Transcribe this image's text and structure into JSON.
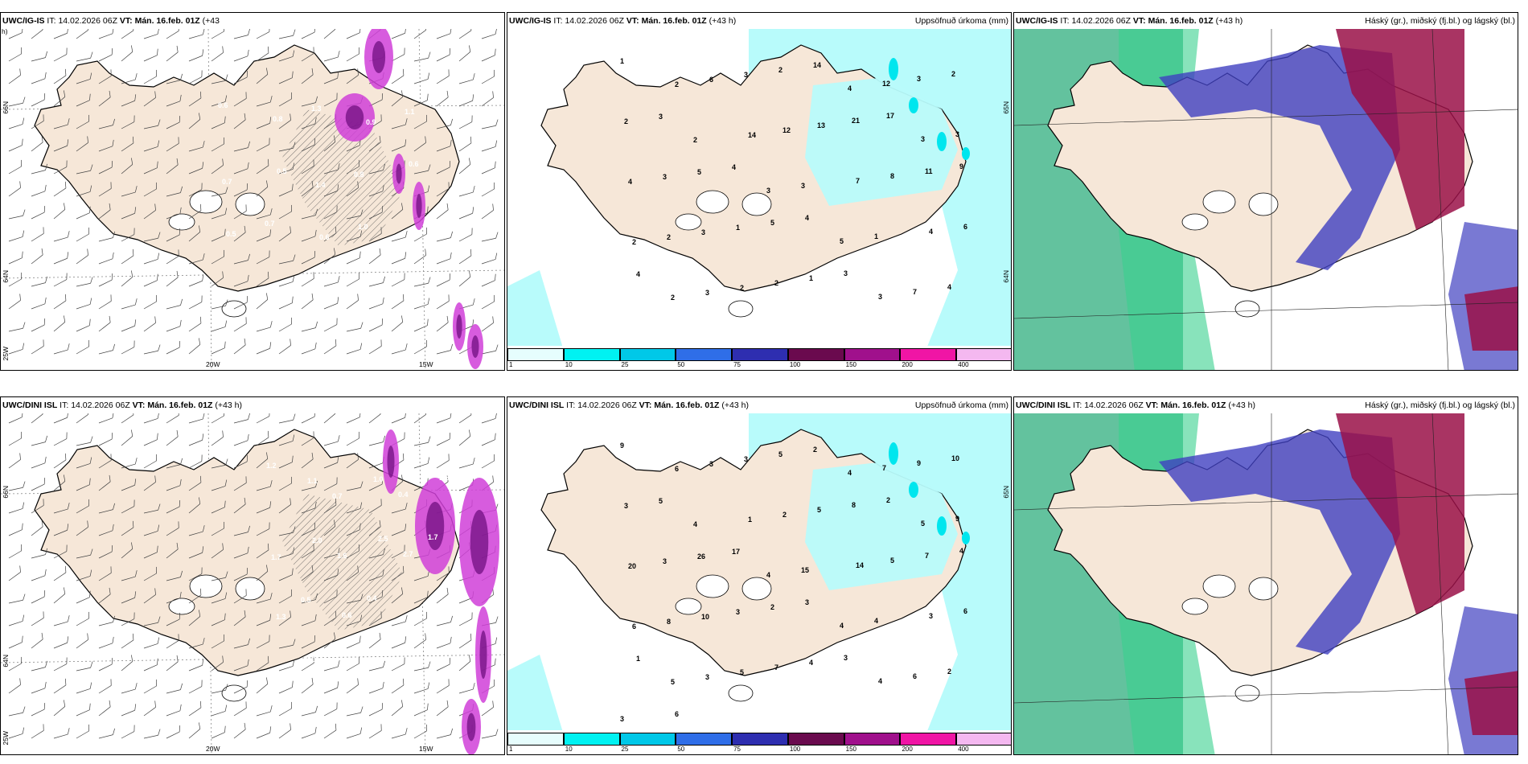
{
  "panels": [
    {
      "id": "r1c1",
      "kind": "wind",
      "model": "UWC/IG-IS",
      "it_label": "IT:",
      "it": "14.02.2026 06Z",
      "vt_label": "VT:",
      "vt": "Mán. 16.feb. 01Z",
      "lead": "(+43",
      "lead2": "h)",
      "field": "",
      "lon_labels": [
        "20W",
        "15W"
      ],
      "lat_labels": [
        "66N",
        "64N",
        "25W"
      ],
      "values": [
        "0.6",
        "0.8",
        "1.3",
        "0.9",
        "1.1",
        "0.7",
        "0.5",
        "1.4",
        "0.8",
        "0.6",
        "0.5",
        "0.7",
        "0.6",
        "1.0"
      ]
    },
    {
      "id": "r1c2",
      "kind": "precip",
      "model": "UWC/IG-IS",
      "it_label": "IT:",
      "it": "14.02.2026 06Z",
      "vt_label": "VT:",
      "vt": "Mán. 16.feb. 01Z",
      "lead": "(+43 h)",
      "lead2": "",
      "field": "Uppsöfnuð úrkoma (mm)",
      "lat_labels": [
        "65N",
        "64N"
      ],
      "values": [
        "1",
        "2",
        "6",
        "3",
        "2",
        "14",
        "4",
        "12",
        "3",
        "2",
        "2",
        "3",
        "2",
        "14",
        "12",
        "13",
        "21",
        "17",
        "3",
        "3",
        "4",
        "3",
        "5",
        "4",
        "3",
        "3",
        "7",
        "8",
        "11",
        "9",
        "2",
        "2",
        "3",
        "1",
        "5",
        "4",
        "5",
        "1",
        "4",
        "6",
        "4",
        "2",
        "3",
        "2",
        "2",
        "1",
        "3",
        "3",
        "7",
        "4"
      ]
    },
    {
      "id": "r1c3",
      "kind": "cloud",
      "model": "UWC/IG-IS",
      "it_label": "IT:",
      "it": "14.02.2026 06Z",
      "vt_label": "VT:",
      "vt": "Mán. 16.feb. 01Z",
      "lead": "(+43 h)",
      "lead2": "",
      "field": "Háský (gr.), miðský (fj.bl.) og lágský (bl.)"
    },
    {
      "id": "r2c1",
      "kind": "wind",
      "model": "UWC/DINI ISL",
      "it_label": "IT:",
      "it": "14.02.2026 06Z",
      "vt_label": "VT:",
      "vt": "Mán. 16.feb. 01Z",
      "lead": "(+43 h)",
      "lead2": "",
      "field": "",
      "lon_labels": [
        "20W",
        "15W"
      ],
      "lat_labels": [
        "66N",
        "64N",
        "25W"
      ],
      "values": [
        "1.2",
        "1.1",
        "0.7",
        "1.0",
        "0.4",
        "1.8",
        "1.7",
        "2.0",
        "1.6",
        "2.5",
        "2.7",
        "1.7",
        "1.3",
        "0.5",
        "0.6",
        "0.4",
        "-3.4",
        "0.8",
        "1.0",
        "2.0"
      ]
    },
    {
      "id": "r2c2",
      "kind": "precip",
      "model": "UWC/DINI ISL",
      "it_label": "IT:",
      "it": "14.02.2026 06Z",
      "vt_label": "VT:",
      "vt": "Mán. 16.feb. 01Z",
      "lead": "(+43 h)",
      "lead2": "",
      "field": "Uppsöfnuð úrkoma (mm)",
      "lat_labels": [
        "65N"
      ],
      "values": [
        "9",
        "6",
        "3",
        "3",
        "5",
        "2",
        "4",
        "7",
        "9",
        "10",
        "3",
        "5",
        "4",
        "1",
        "2",
        "5",
        "8",
        "2",
        "5",
        "9",
        "20",
        "3",
        "26",
        "17",
        "4",
        "15",
        "14",
        "5",
        "7",
        "4",
        "6",
        "8",
        "10",
        "3",
        "2",
        "3",
        "4",
        "4",
        "3",
        "6",
        "1",
        "5",
        "3",
        "5",
        "7",
        "4",
        "3",
        "4",
        "6",
        "2",
        "3",
        "6"
      ]
    },
    {
      "id": "r2c3",
      "kind": "cloud",
      "model": "UWC/DINI ISL",
      "it_label": "IT:",
      "it": "14.02.2026 06Z",
      "vt_label": "VT:",
      "vt": "Mán. 16.feb. 01Z",
      "lead": "(+43 h)",
      "lead2": "",
      "field": "Háský (gr.), miðský (fj.bl.) og lágský (bl.)"
    }
  ],
  "colorbar": {
    "ticks": [
      "1",
      "10",
      "25",
      "50",
      "75",
      "100",
      "150",
      "200",
      "400"
    ],
    "colors": [
      "#e6fdfd",
      "#00f2f2",
      "#00c8e8",
      "#2f6ee8",
      "#2e2eb0",
      "#6a0a4e",
      "#a0108c",
      "#f015a5",
      "#f4b8f0"
    ]
  },
  "colors": {
    "land": "#f6e7d8",
    "sea": "#ffffff",
    "precip_light": "#b8fbfb",
    "precip_mid": "#00e6ee",
    "wind_mag": "#d040d8",
    "wind_mag_dark": "#6a0a7a",
    "high_cloud": "#2fae7e",
    "mid_cloud": "#4040c0",
    "low_cloud": "#9a1048"
  }
}
